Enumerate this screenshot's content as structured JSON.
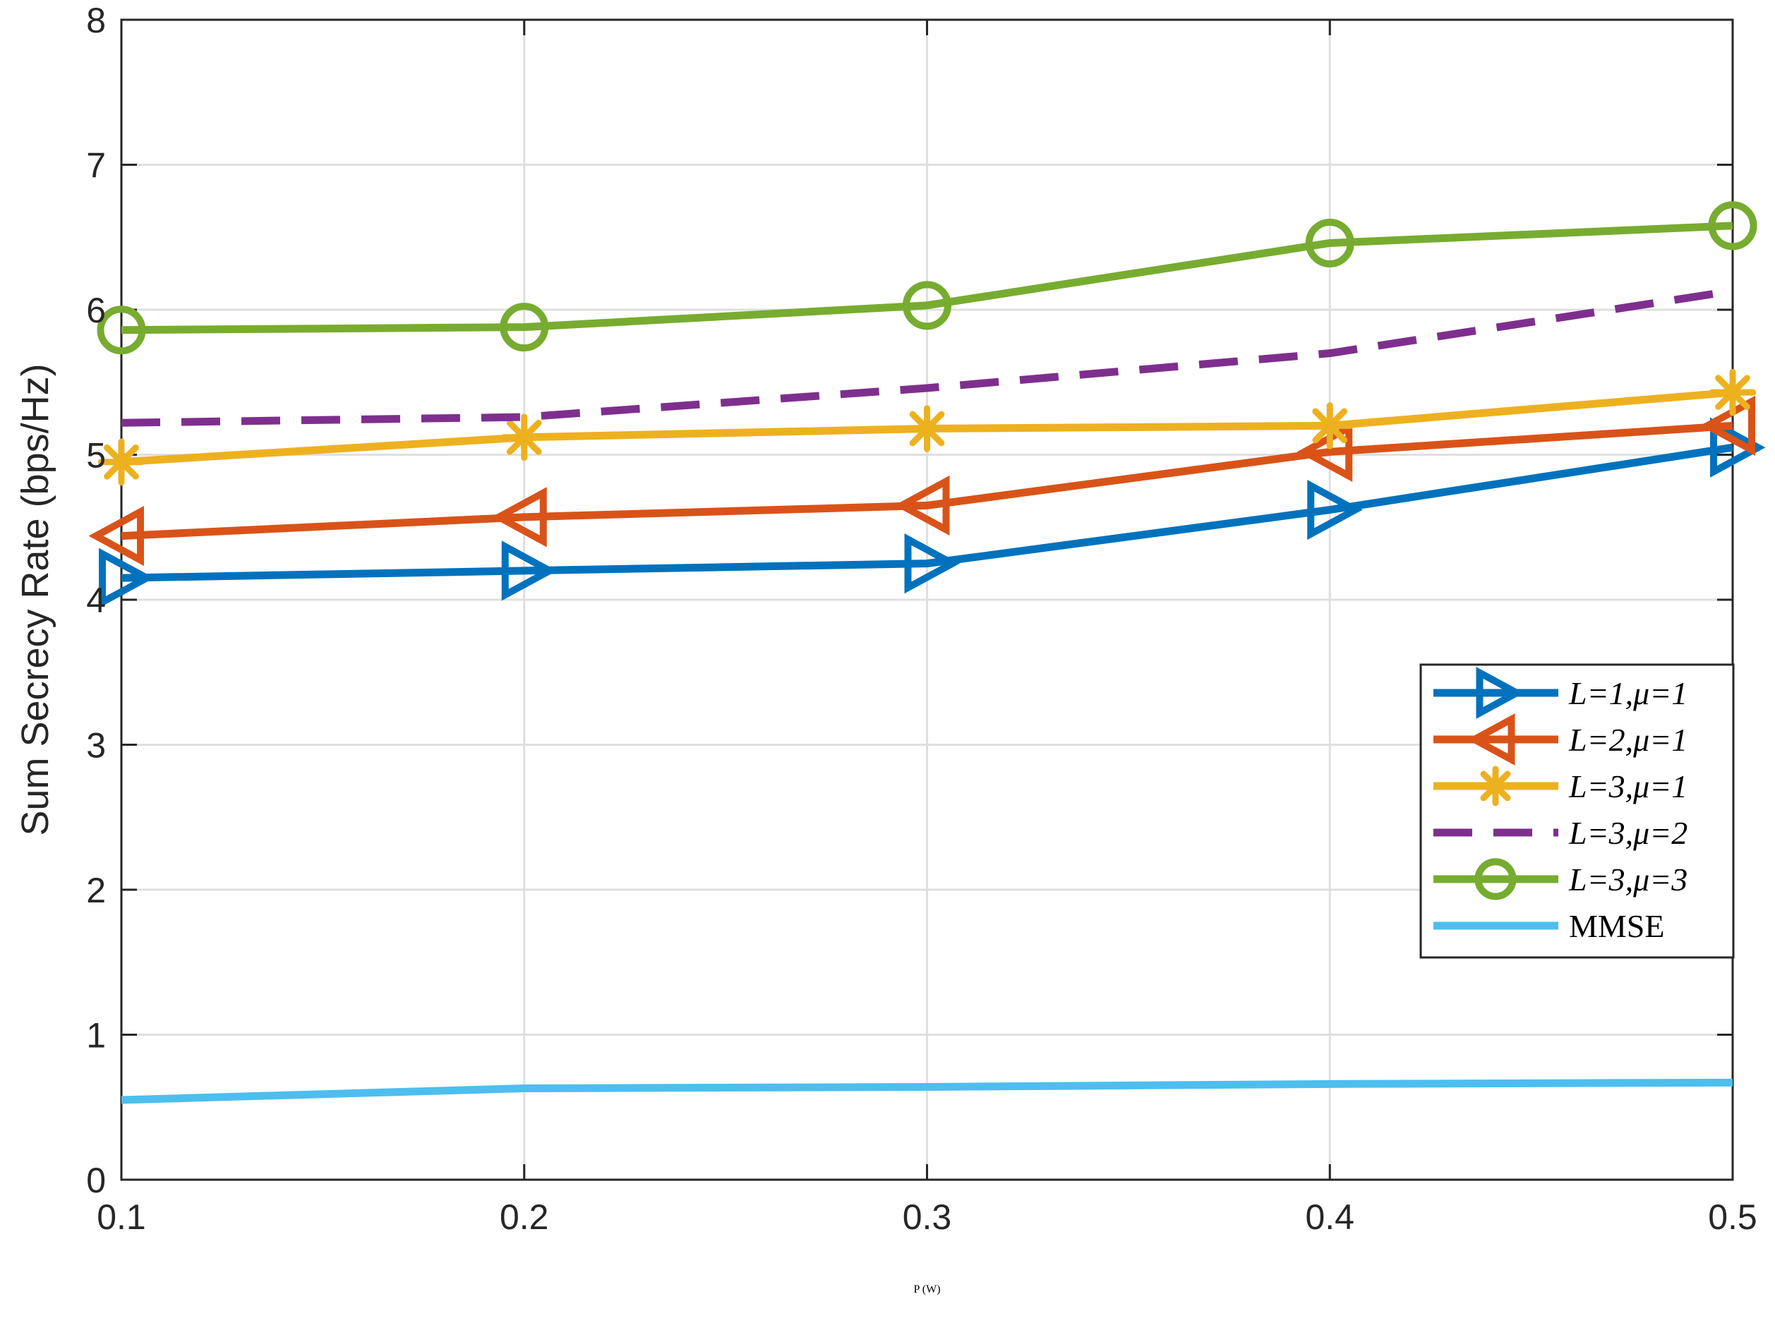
{
  "chart_data": {
    "type": "line",
    "xlabel_symbol": "P",
    "xlabel_unit": " (W)",
    "ylabel": "Sum Secrecy Rate  (bps/Hz)",
    "x": [
      0.1,
      0.2,
      0.3,
      0.4,
      0.5
    ],
    "xlim": [
      0.1,
      0.5
    ],
    "ylim": [
      0,
      8
    ],
    "xticks": [
      "0.1",
      "0.2",
      "0.3",
      "0.4",
      "0.5"
    ],
    "yticks": [
      "0",
      "1",
      "2",
      "3",
      "4",
      "5",
      "6",
      "7",
      "8"
    ],
    "grid": true,
    "legend_position": "right",
    "series": [
      {
        "name": "L=1,μ=1",
        "color": "#0072BD",
        "marker": "triangle-right",
        "dash": "solid",
        "values": [
          4.15,
          4.2,
          4.25,
          4.62,
          5.05
        ]
      },
      {
        "name": "L=2,μ=1",
        "color": "#D95319",
        "marker": "triangle-left",
        "dash": "solid",
        "values": [
          4.44,
          4.57,
          4.65,
          5.02,
          5.2
        ]
      },
      {
        "name": "L=3,μ=1",
        "color": "#EDB120",
        "marker": "asterisk",
        "dash": "solid",
        "values": [
          4.95,
          5.12,
          5.18,
          5.2,
          5.43
        ]
      },
      {
        "name": "L=3,μ=2",
        "color": "#7E2F8E",
        "marker": "none",
        "dash": "dashed",
        "values": [
          5.22,
          5.26,
          5.46,
          5.7,
          6.13
        ]
      },
      {
        "name": "L=3,μ=3",
        "color": "#77AC30",
        "marker": "circle",
        "dash": "solid",
        "values": [
          5.86,
          5.88,
          6.03,
          6.46,
          6.58
        ]
      },
      {
        "name": "MMSE",
        "color": "#4DBEEE",
        "marker": "none",
        "dash": "solid",
        "values": [
          0.55,
          0.63,
          0.64,
          0.66,
          0.67
        ]
      }
    ]
  }
}
